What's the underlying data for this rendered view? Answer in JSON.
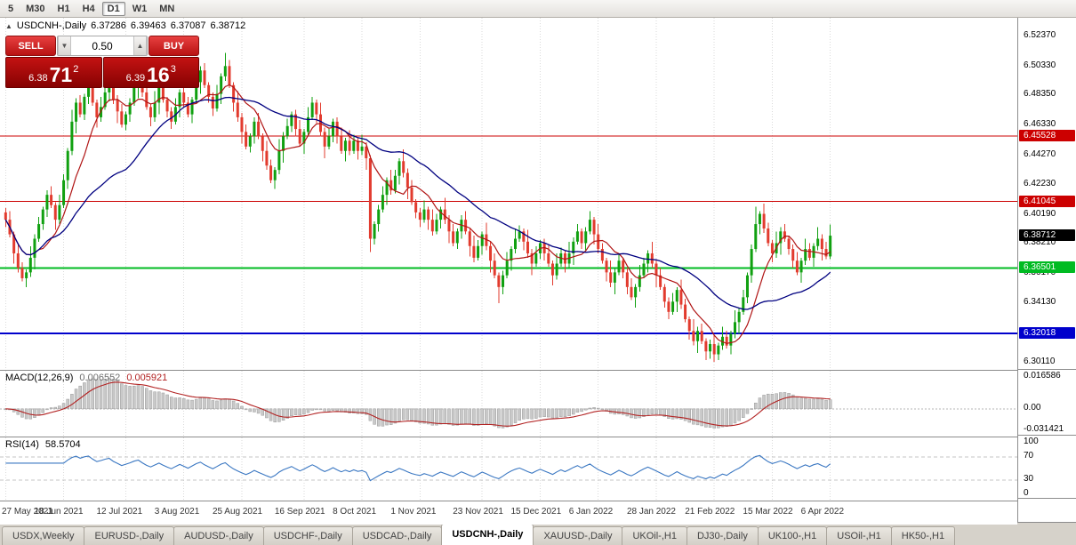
{
  "toolbar": {
    "timeframes": [
      "5",
      "M30",
      "H1",
      "H4",
      "D1",
      "W1",
      "MN"
    ],
    "active": "D1"
  },
  "icons": {
    "collapse_arrow": "▲",
    "spinner_down": "▼",
    "spinner_up": "▲"
  },
  "chart": {
    "title_symbol": "USDCNH-,Daily",
    "ohlc": {
      "open": "6.37286",
      "high": "6.39463",
      "low": "6.37087",
      "close": "6.38712"
    },
    "trade_panel": {
      "sell_label": "SELL",
      "buy_label": "BUY",
      "volume": "0.50",
      "sell_price": {
        "small": "6.38",
        "big": "71",
        "sup": "2"
      },
      "buy_price": {
        "small": "6.39",
        "big": "16",
        "sup": "3"
      }
    }
  },
  "chart_data": {
    "type": "candlestick",
    "symbol": "USDCNH-,Daily",
    "price_axis": {
      "min": 6.296,
      "max": 6.536,
      "tick_labels": [
        "6.52370",
        "6.50330",
        "6.48350",
        "6.46330",
        "6.44270",
        "6.42230",
        "6.40190",
        "6.38210",
        "6.36170",
        "6.34130",
        "6.30110"
      ]
    },
    "current_price": {
      "value": 6.38712,
      "label": "6.38712",
      "color": "#000000"
    },
    "levels": [
      {
        "price": 6.45528,
        "label": "6.45528",
        "color": "#cc0000",
        "width": 1
      },
      {
        "price": 6.41045,
        "label": "6.41045",
        "color": "#cc0000",
        "width": 1
      },
      {
        "price": 6.36501,
        "label": "6.36501",
        "color": "#00bb22",
        "width": 2
      },
      {
        "price": 6.32018,
        "label": "6.32018",
        "color": "#0000cc",
        "width": 2
      }
    ],
    "overlays": [
      {
        "name": "ma-fast",
        "type": "sma",
        "period": 9,
        "color": "#b01414",
        "width": 1.2
      },
      {
        "name": "ma-slow",
        "type": "sma",
        "period": 30,
        "color": "#000080",
        "width": 1.3
      }
    ],
    "x_gridlines": [
      {
        "index": 0,
        "label": "27 May 2021"
      },
      {
        "index": 14,
        "label": "18 Jun 2021"
      },
      {
        "index": 29,
        "label": "12 Jul 2021"
      },
      {
        "index": 43,
        "label": "3 Aug 2021"
      },
      {
        "index": 57,
        "label": "25 Aug 2021"
      },
      {
        "index": 72,
        "label": "16 Sep 2021"
      },
      {
        "index": 86,
        "label": "8 Oct 2021"
      },
      {
        "index": 100,
        "label": "1 Nov 2021"
      },
      {
        "index": 115,
        "label": "23 Nov 2021"
      },
      {
        "index": 129,
        "label": "15 Dec 2021"
      },
      {
        "index": 143,
        "label": "6 Jan 2022"
      },
      {
        "index": 157,
        "label": "28 Jan 2022"
      },
      {
        "index": 171,
        "label": "21 Feb 2022"
      },
      {
        "index": 185,
        "label": "15 Mar 2022"
      },
      {
        "index": 199,
        "label": "6 Apr 2022"
      }
    ],
    "indicators": [
      {
        "name": "MACD",
        "label": "MACD(12,26,9)",
        "params": [
          12,
          26,
          9
        ],
        "values": [
          "0.006552",
          "0.005921"
        ],
        "axis_ticks": [
          "0.016586",
          "0.00",
          "-0.031421"
        ]
      },
      {
        "name": "RSI",
        "label": "RSI(14)",
        "period": 14,
        "value": "58.5704",
        "axis_ticks": [
          "100",
          "70",
          "30",
          "0"
        ],
        "axis_tick_values": [
          100,
          70,
          30,
          0
        ],
        "levels": [
          70,
          30
        ]
      }
    ],
    "candles": [
      [
        6.403,
        6.406,
        6.393,
        6.398
      ],
      [
        6.398,
        6.404,
        6.386,
        6.388
      ],
      [
        6.388,
        6.39,
        6.368,
        6.375
      ],
      [
        6.375,
        6.382,
        6.362,
        6.365
      ],
      [
        6.365,
        6.369,
        6.356,
        6.358
      ],
      [
        6.358,
        6.364,
        6.352,
        6.362
      ],
      [
        6.362,
        6.38,
        6.359,
        6.372
      ],
      [
        6.372,
        6.388,
        6.364,
        6.385
      ],
      [
        6.385,
        6.4,
        6.383,
        6.395
      ],
      [
        6.395,
        6.407,
        6.391,
        6.405
      ],
      [
        6.405,
        6.418,
        6.4,
        6.415
      ],
      [
        6.415,
        6.421,
        6.406,
        6.408
      ],
      [
        6.408,
        6.41,
        6.391,
        6.398
      ],
      [
        6.398,
        6.415,
        6.395,
        6.408
      ],
      [
        6.408,
        6.429,
        6.406,
        6.425
      ],
      [
        6.425,
        6.447,
        6.419,
        6.445
      ],
      [
        6.445,
        6.473,
        6.442,
        6.465
      ],
      [
        6.465,
        6.481,
        6.457,
        6.478
      ],
      [
        6.478,
        6.483,
        6.468,
        6.47
      ],
      [
        6.47,
        6.484,
        6.466,
        6.482
      ],
      [
        6.482,
        6.493,
        6.477,
        6.49
      ],
      [
        6.49,
        6.496,
        6.476,
        6.478
      ],
      [
        6.478,
        6.48,
        6.461,
        6.468
      ],
      [
        6.468,
        6.482,
        6.465,
        6.475
      ],
      [
        6.475,
        6.489,
        6.473,
        6.485
      ],
      [
        6.485,
        6.494,
        6.479,
        6.492
      ],
      [
        6.492,
        6.5,
        6.477,
        6.48
      ],
      [
        6.48,
        6.483,
        6.464,
        6.472
      ],
      [
        6.472,
        6.477,
        6.461,
        6.463
      ],
      [
        6.463,
        6.472,
        6.459,
        6.47
      ],
      [
        6.47,
        6.481,
        6.465,
        6.478
      ],
      [
        6.478,
        6.494,
        6.476,
        6.488
      ],
      [
        6.488,
        6.497,
        6.481,
        6.495
      ],
      [
        6.495,
        6.502,
        6.482,
        6.485
      ],
      [
        6.485,
        6.489,
        6.473,
        6.475
      ],
      [
        6.475,
        6.477,
        6.462,
        6.468
      ],
      [
        6.468,
        6.486,
        6.465,
        6.478
      ],
      [
        6.478,
        6.491,
        6.47,
        6.488
      ],
      [
        6.488,
        6.493,
        6.478,
        6.48
      ],
      [
        6.48,
        6.482,
        6.468,
        6.472
      ],
      [
        6.472,
        6.475,
        6.46,
        6.465
      ],
      [
        6.465,
        6.481,
        6.463,
        6.475
      ],
      [
        6.475,
        6.487,
        6.468,
        6.485
      ],
      [
        6.485,
        6.492,
        6.475,
        6.478
      ],
      [
        6.478,
        6.482,
        6.468,
        6.47
      ],
      [
        6.47,
        6.482,
        6.464,
        6.48
      ],
      [
        6.48,
        6.5,
        6.477,
        6.492
      ],
      [
        6.492,
        6.503,
        6.484,
        6.5
      ],
      [
        6.5,
        6.505,
        6.488,
        6.49
      ],
      [
        6.49,
        6.492,
        6.478,
        6.482
      ],
      [
        6.482,
        6.485,
        6.469,
        6.474
      ],
      [
        6.474,
        6.49,
        6.472,
        6.484
      ],
      [
        6.484,
        6.498,
        6.477,
        6.496
      ],
      [
        6.496,
        6.512,
        6.493,
        6.503
      ],
      [
        6.503,
        6.507,
        6.488,
        6.49
      ],
      [
        6.49,
        6.492,
        6.472,
        6.478
      ],
      [
        6.478,
        6.486,
        6.465,
        6.468
      ],
      [
        6.468,
        6.471,
        6.45,
        6.458
      ],
      [
        6.458,
        6.463,
        6.446,
        6.448
      ],
      [
        6.448,
        6.457,
        6.444,
        6.455
      ],
      [
        6.455,
        6.468,
        6.45,
        6.465
      ],
      [
        6.465,
        6.471,
        6.453,
        6.455
      ],
      [
        6.455,
        6.457,
        6.438,
        6.445
      ],
      [
        6.445,
        6.452,
        6.432,
        6.435
      ],
      [
        6.435,
        6.439,
        6.423,
        6.425
      ],
      [
        6.425,
        6.434,
        6.419,
        6.432
      ],
      [
        6.432,
        6.453,
        6.429,
        6.445
      ],
      [
        6.445,
        6.458,
        6.437,
        6.455
      ],
      [
        6.455,
        6.467,
        6.453,
        6.462
      ],
      [
        6.462,
        6.472,
        6.458,
        6.47
      ],
      [
        6.47,
        6.473,
        6.455,
        6.46
      ],
      [
        6.46,
        6.466,
        6.448,
        6.45
      ],
      [
        6.45,
        6.46,
        6.443,
        6.458
      ],
      [
        6.458,
        6.475,
        6.455,
        6.468
      ],
      [
        6.468,
        6.482,
        6.466,
        6.478
      ],
      [
        6.478,
        6.48,
        6.464,
        6.47
      ],
      [
        6.47,
        6.478,
        6.455,
        6.458
      ],
      [
        6.458,
        6.461,
        6.44,
        6.448
      ],
      [
        6.448,
        6.46,
        6.446,
        6.455
      ],
      [
        6.455,
        6.467,
        6.451,
        6.465
      ],
      [
        6.465,
        6.468,
        6.45,
        6.455
      ],
      [
        6.455,
        6.461,
        6.443,
        6.445
      ],
      [
        6.445,
        6.454,
        6.438,
        6.452
      ],
      [
        6.452,
        6.459,
        6.442,
        6.445
      ],
      [
        6.445,
        6.456,
        6.443,
        6.452
      ],
      [
        6.452,
        6.454,
        6.439,
        6.445
      ],
      [
        6.445,
        6.456,
        6.442,
        6.448
      ],
      [
        6.448,
        6.451,
        6.432,
        6.44
      ],
      [
        6.44,
        6.442,
        6.376,
        6.385
      ],
      [
        6.385,
        6.397,
        6.381,
        6.395
      ],
      [
        6.395,
        6.408,
        6.39,
        6.405
      ],
      [
        6.405,
        6.421,
        6.403,
        6.415
      ],
      [
        6.415,
        6.427,
        6.408,
        6.425
      ],
      [
        6.425,
        6.432,
        6.415,
        6.418
      ],
      [
        6.418,
        6.432,
        6.416,
        6.428
      ],
      [
        6.428,
        6.44,
        6.422,
        6.438
      ],
      [
        6.438,
        6.446,
        6.427,
        6.43
      ],
      [
        6.43,
        6.433,
        6.412,
        6.42
      ],
      [
        6.42,
        6.425,
        6.408,
        6.41
      ],
      [
        6.41,
        6.412,
        6.399,
        6.403
      ],
      [
        6.403,
        6.406,
        6.393,
        6.398
      ],
      [
        6.398,
        6.411,
        6.396,
        6.405
      ],
      [
        6.405,
        6.407,
        6.391,
        6.398
      ],
      [
        6.398,
        6.405,
        6.387,
        6.39
      ],
      [
        6.39,
        6.402,
        6.388,
        6.398
      ],
      [
        6.398,
        6.407,
        6.392,
        6.405
      ],
      [
        6.405,
        6.413,
        6.395,
        6.398
      ],
      [
        6.398,
        6.401,
        6.382,
        6.39
      ],
      [
        6.39,
        6.395,
        6.38,
        6.382
      ],
      [
        6.382,
        6.392,
        6.378,
        6.39
      ],
      [
        6.39,
        6.401,
        6.385,
        6.398
      ],
      [
        6.398,
        6.404,
        6.388,
        6.39
      ],
      [
        6.39,
        6.392,
        6.373,
        6.38
      ],
      [
        6.38,
        6.387,
        6.369,
        6.372
      ],
      [
        6.372,
        6.384,
        6.37,
        6.38
      ],
      [
        6.38,
        6.39,
        6.374,
        6.388
      ],
      [
        6.388,
        6.396,
        6.377,
        6.38
      ],
      [
        6.38,
        6.383,
        6.362,
        6.37
      ],
      [
        6.37,
        6.375,
        6.358,
        6.36
      ],
      [
        6.36,
        6.362,
        6.341,
        6.352
      ],
      [
        6.352,
        6.363,
        6.347,
        6.36
      ],
      [
        6.36,
        6.376,
        6.358,
        6.37
      ],
      [
        6.37,
        6.38,
        6.363,
        6.378
      ],
      [
        6.378,
        6.392,
        6.375,
        6.385
      ],
      [
        6.385,
        6.394,
        6.383,
        6.39
      ],
      [
        6.39,
        6.392,
        6.377,
        6.383
      ],
      [
        6.383,
        6.391,
        6.372,
        6.375
      ],
      [
        6.375,
        6.378,
        6.36,
        6.368
      ],
      [
        6.368,
        6.38,
        6.366,
        6.375
      ],
      [
        6.375,
        6.384,
        6.371,
        6.382
      ],
      [
        6.382,
        6.385,
        6.37,
        6.375
      ],
      [
        6.375,
        6.381,
        6.366,
        6.368
      ],
      [
        6.368,
        6.37,
        6.353,
        6.36
      ],
      [
        6.36,
        6.375,
        6.357,
        6.368
      ],
      [
        6.368,
        6.379,
        6.366,
        6.375
      ],
      [
        6.375,
        6.377,
        6.362,
        6.368
      ],
      [
        6.368,
        6.383,
        6.365,
        6.375
      ],
      [
        6.375,
        6.386,
        6.367,
        6.383
      ],
      [
        6.383,
        6.395,
        6.381,
        6.39
      ],
      [
        6.39,
        6.392,
        6.378,
        6.382
      ],
      [
        6.382,
        6.393,
        6.377,
        6.39
      ],
      [
        6.39,
        6.404,
        6.388,
        6.398
      ],
      [
        6.398,
        6.4,
        6.381,
        6.388
      ],
      [
        6.388,
        6.395,
        6.375,
        6.378
      ],
      [
        6.378,
        6.382,
        6.368,
        6.37
      ],
      [
        6.37,
        6.372,
        6.356,
        6.362
      ],
      [
        6.362,
        6.37,
        6.352,
        6.355
      ],
      [
        6.355,
        6.365,
        6.347,
        6.362
      ],
      [
        6.362,
        6.375,
        6.36,
        6.37
      ],
      [
        6.37,
        6.372,
        6.358,
        6.362
      ],
      [
        6.362,
        6.365,
        6.347,
        6.352
      ],
      [
        6.352,
        6.358,
        6.343,
        6.345
      ],
      [
        6.345,
        6.354,
        6.338,
        6.352
      ],
      [
        6.352,
        6.367,
        6.349,
        6.36
      ],
      [
        6.36,
        6.372,
        6.358,
        6.368
      ],
      [
        6.368,
        6.377,
        6.362,
        6.375
      ],
      [
        6.375,
        6.383,
        6.365,
        6.368
      ],
      [
        6.368,
        6.371,
        6.352,
        6.36
      ],
      [
        6.36,
        6.365,
        6.35,
        6.352
      ],
      [
        6.352,
        6.354,
        6.338,
        6.342
      ],
      [
        6.342,
        6.345,
        6.33,
        6.335
      ],
      [
        6.335,
        6.348,
        6.333,
        6.342
      ],
      [
        6.342,
        6.352,
        6.335,
        6.35
      ],
      [
        6.35,
        6.357,
        6.337,
        6.34
      ],
      [
        6.34,
        6.344,
        6.328,
        6.33
      ],
      [
        6.33,
        6.332,
        6.316,
        6.322
      ],
      [
        6.322,
        6.33,
        6.312,
        6.315
      ],
      [
        6.315,
        6.325,
        6.307,
        6.322
      ],
      [
        6.322,
        6.327,
        6.313,
        6.315
      ],
      [
        6.315,
        6.317,
        6.302,
        6.308
      ],
      [
        6.308,
        6.316,
        6.303,
        6.313
      ],
      [
        6.313,
        6.319,
        6.301,
        6.306
      ],
      [
        6.306,
        6.314,
        6.302,
        6.312
      ],
      [
        6.312,
        6.325,
        6.309,
        6.318
      ],
      [
        6.318,
        6.322,
        6.31,
        6.312
      ],
      [
        6.312,
        6.322,
        6.306,
        6.32
      ],
      [
        6.32,
        6.336,
        6.317,
        6.328
      ],
      [
        6.328,
        6.338,
        6.32,
        6.335
      ],
      [
        6.335,
        6.35,
        6.333,
        6.345
      ],
      [
        6.345,
        6.362,
        6.341,
        6.36
      ],
      [
        6.36,
        6.381,
        6.355,
        6.378
      ],
      [
        6.378,
        6.407,
        6.376,
        6.395
      ],
      [
        6.395,
        6.404,
        6.388,
        6.402
      ],
      [
        6.402,
        6.409,
        6.389,
        6.392
      ],
      [
        6.392,
        6.396,
        6.38,
        6.382
      ],
      [
        6.382,
        6.384,
        6.369,
        6.375
      ],
      [
        6.375,
        6.39,
        6.372,
        6.382
      ],
      [
        6.382,
        6.393,
        6.374,
        6.39
      ],
      [
        6.39,
        6.395,
        6.383,
        6.385
      ],
      [
        6.385,
        6.387,
        6.374,
        6.378
      ],
      [
        6.378,
        6.381,
        6.365,
        6.37
      ],
      [
        6.37,
        6.376,
        6.36,
        6.362
      ],
      [
        6.362,
        6.372,
        6.355,
        6.37
      ],
      [
        6.37,
        6.385,
        6.367,
        6.378
      ],
      [
        6.378,
        6.382,
        6.37,
        6.372
      ],
      [
        6.372,
        6.382,
        6.366,
        6.38
      ],
      [
        6.38,
        6.393,
        6.377,
        6.385
      ],
      [
        6.385,
        6.388,
        6.37,
        6.378
      ],
      [
        6.378,
        6.383,
        6.371,
        6.3729
      ],
      [
        6.3729,
        6.3946,
        6.3709,
        6.3871
      ]
    ]
  },
  "colors": {
    "candle_up": "#10a010",
    "candle_down": "#e23b2e",
    "grid": "#dadada",
    "macd_hist_fill": "#c9c9c9",
    "macd_hist_stroke": "#9b9b9b",
    "macd_signal": "#b22222",
    "rsi_line": "#3a77c2"
  },
  "tabs": [
    "USDX,Weekly",
    "EURUSD-,Daily",
    "AUDUSD-,Daily",
    "USDCHF-,Daily",
    "USDCAD-,Daily",
    "USDCNH-,Daily",
    "XAUUSD-,Daily",
    "UKOil-,H1",
    "DJ30-,Daily",
    "UK100-,H1",
    "USOil-,H1",
    "HK50-,H1"
  ],
  "tabs_active": "USDCNH-,Daily"
}
